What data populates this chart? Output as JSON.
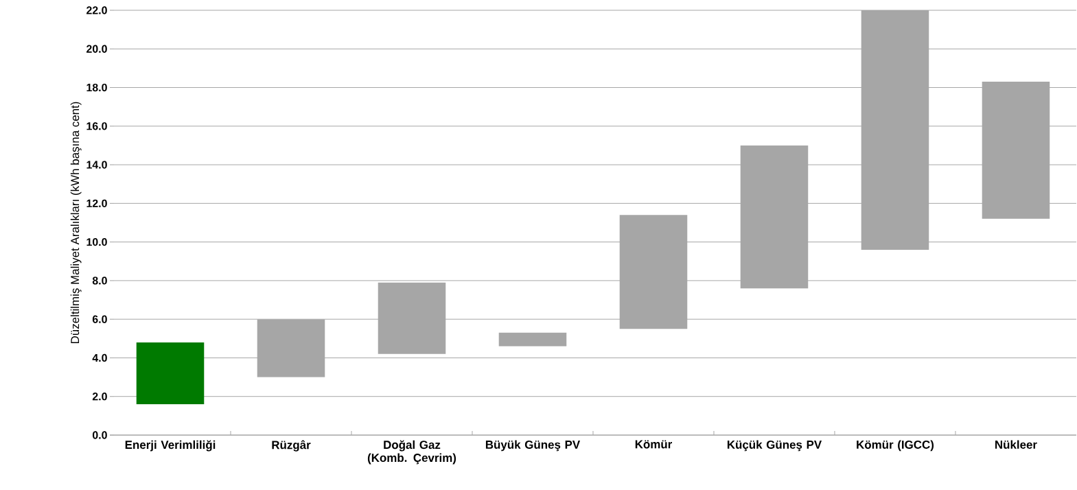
{
  "chart_data": {
    "type": "bar",
    "ylabel": "Düzeltilmiş Maliyet Aralıkları (kWh başına cent)",
    "categories": [
      "Enerji Verimliliği",
      "Rüzgâr",
      "Doğal Gaz (Komb. Çevrim)",
      "Büyük Güneş PV",
      "Kömür",
      "Küçük Güneş PV",
      "Kömür (IGCC)",
      "Nükleer"
    ],
    "base": [
      1.6,
      3.0,
      4.2,
      4.6,
      5.5,
      7.6,
      9.6,
      11.2
    ],
    "values": [
      3.2,
      3.0,
      3.7,
      0.7,
      5.9,
      7.4,
      12.4,
      7.1
    ],
    "colors": [
      "#007a00",
      "#a6a6a6",
      "#a6a6a6",
      "#a6a6a6",
      "#a6a6a6",
      "#a6a6a6",
      "#a6a6a6",
      "#a6a6a6"
    ],
    "ylim": [
      0,
      22
    ],
    "yticks": [
      {
        "value": 0,
        "label": "0.0"
      },
      {
        "value": 2,
        "label": "2.0"
      },
      {
        "value": 4,
        "label": "4.0"
      },
      {
        "value": 6,
        "label": "6.0"
      },
      {
        "value": 8,
        "label": "8.0"
      },
      {
        "value": 10,
        "label": "10.0"
      },
      {
        "value": 12,
        "label": "12.0"
      },
      {
        "value": 14,
        "label": "14.0"
      },
      {
        "value": 16,
        "label": "16.0"
      },
      {
        "value": 18,
        "label": "18.0"
      },
      {
        "value": 20,
        "label": "20.0"
      },
      {
        "value": 22,
        "label": "22.0"
      }
    ],
    "grid": "y"
  }
}
